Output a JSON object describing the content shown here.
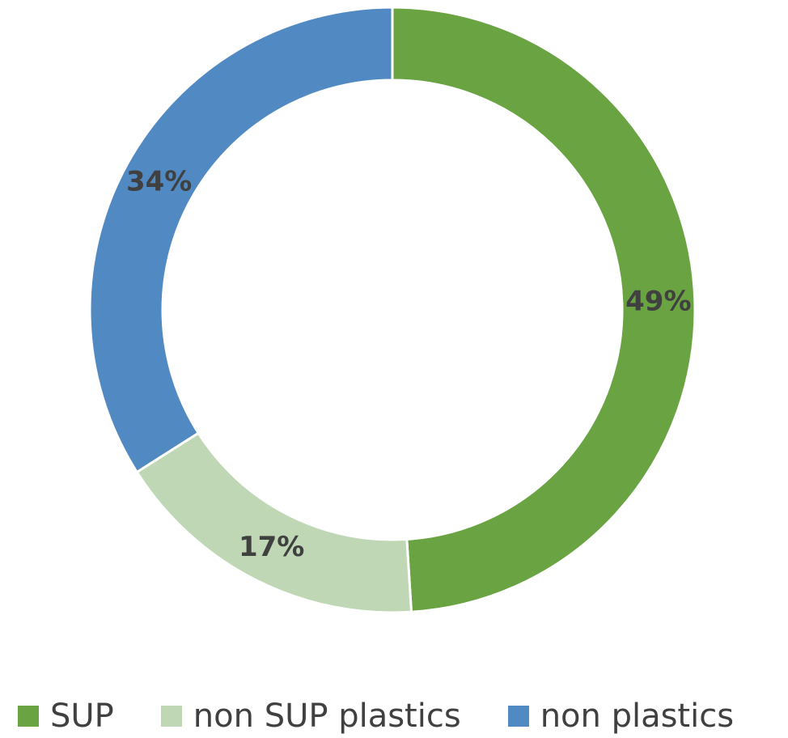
{
  "chart_data": {
    "type": "pie",
    "variant": "donut",
    "categories": [
      "SUP",
      "non SUP plastics",
      "non plastics"
    ],
    "values": [
      49,
      17,
      34
    ],
    "data_labels": [
      "49%",
      "17%",
      "34%"
    ],
    "colors": [
      "#6aa342",
      "#bfd7b5",
      "#5189c2"
    ],
    "legend_position": "bottom",
    "start_angle_deg": 0,
    "direction": "clockwise"
  }
}
